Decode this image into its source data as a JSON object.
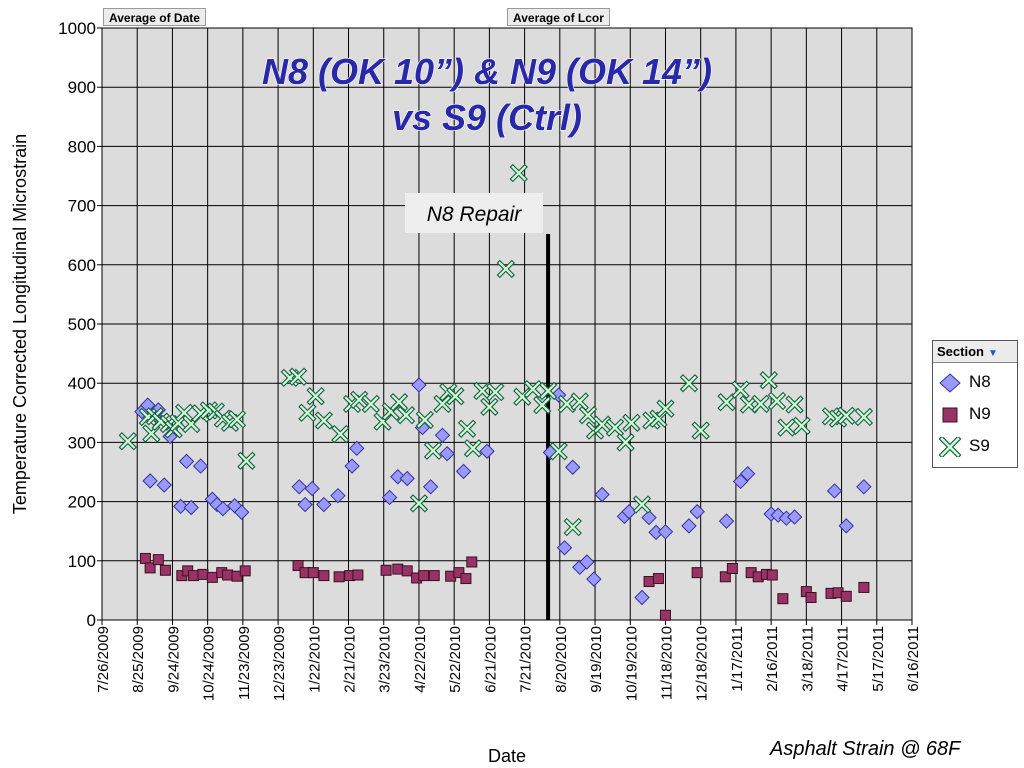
{
  "field_buttons": {
    "date": "Average of Date",
    "lcor": "Average of Lcor"
  },
  "legend": {
    "title": "Section",
    "items": [
      {
        "name": "N8",
        "color": "#9999ff",
        "marker": "diamond"
      },
      {
        "name": "N9",
        "color": "#993366",
        "marker": "square"
      },
      {
        "name": "S9",
        "color": "#ccffcc",
        "marker": "cross"
      }
    ]
  },
  "footnote": "Asphalt Strain @ 68F",
  "chart_data": {
    "type": "scatter",
    "title": "N8 (OK 10”) & N9 (OK 14”)",
    "subtitle": "vs S9 (Ctrl)",
    "xlabel": "Date",
    "ylabel": "Temperature Corrected Longitudinal Microstrain",
    "ylim": [
      0,
      1000
    ],
    "yticks": [
      0,
      100,
      200,
      300,
      400,
      500,
      600,
      700,
      800,
      900,
      1000
    ],
    "xlim": [
      "2009-07-26",
      "2011-06-16"
    ],
    "xticks": [
      "7/26/2009",
      "8/25/2009",
      "9/24/2009",
      "10/24/2009",
      "11/23/2009",
      "12/23/2009",
      "1/22/2010",
      "2/21/2010",
      "3/23/2010",
      "4/22/2010",
      "5/22/2010",
      "6/21/2010",
      "7/21/2010",
      "8/20/2010",
      "9/19/2010",
      "10/19/2010",
      "11/18/2010",
      "12/18/2010",
      "1/17/2011",
      "2/16/2011",
      "3/18/2011",
      "4/17/2011",
      "5/17/2011",
      "6/16/2011"
    ],
    "grid": true,
    "legend_position": "right",
    "annotation": {
      "text": "N8 Repair",
      "date": "2010-08-10",
      "line_top": 652
    },
    "series": [
      {
        "name": "N8",
        "points": [
          [
            "2009-08-29",
            352
          ],
          [
            "2009-09-03",
            363
          ],
          [
            "2009-09-05",
            235
          ],
          [
            "2009-09-09",
            345
          ],
          [
            "2009-09-12",
            355
          ],
          [
            "2009-09-17",
            228
          ],
          [
            "2009-09-22",
            310
          ],
          [
            "2009-10-01",
            192
          ],
          [
            "2009-10-06",
            268
          ],
          [
            "2009-10-10",
            190
          ],
          [
            "2009-10-18",
            260
          ],
          [
            "2009-10-28",
            204
          ],
          [
            "2009-11-01",
            195
          ],
          [
            "2009-11-06",
            188
          ],
          [
            "2009-11-16",
            193
          ],
          [
            "2009-11-22",
            182
          ],
          [
            "2010-01-10",
            225
          ],
          [
            "2010-01-15",
            195
          ],
          [
            "2010-01-21",
            222
          ],
          [
            "2010-01-31",
            195
          ],
          [
            "2010-02-12",
            210
          ],
          [
            "2010-02-24",
            260
          ],
          [
            "2010-02-28",
            290
          ],
          [
            "2010-03-28",
            207
          ],
          [
            "2010-04-04",
            242
          ],
          [
            "2010-04-12",
            239
          ],
          [
            "2010-04-22",
            397
          ],
          [
            "2010-04-25",
            325
          ],
          [
            "2010-05-02",
            225
          ],
          [
            "2010-05-12",
            312
          ],
          [
            "2010-05-16",
            281
          ],
          [
            "2010-05-30",
            251
          ],
          [
            "2010-06-19",
            285
          ],
          [
            "2010-08-12",
            283
          ],
          [
            "2010-08-19",
            380
          ],
          [
            "2010-08-24",
            122
          ],
          [
            "2010-08-31",
            258
          ],
          [
            "2010-09-06",
            89
          ],
          [
            "2010-09-12",
            98
          ],
          [
            "2010-09-18",
            69
          ],
          [
            "2010-09-25",
            212
          ],
          [
            "2010-10-14",
            175
          ],
          [
            "2010-10-18",
            183
          ],
          [
            "2010-10-29",
            38
          ],
          [
            "2010-11-04",
            173
          ],
          [
            "2010-11-10",
            148
          ],
          [
            "2010-11-18",
            149
          ],
          [
            "2010-12-08",
            159
          ],
          [
            "2010-12-15",
            183
          ],
          [
            "2011-01-09",
            167
          ],
          [
            "2011-01-21",
            234
          ],
          [
            "2011-01-27",
            247
          ],
          [
            "2011-02-16",
            179
          ],
          [
            "2011-02-22",
            177
          ],
          [
            "2011-03-01",
            172
          ],
          [
            "2011-03-08",
            174
          ],
          [
            "2011-04-11",
            218
          ],
          [
            "2011-04-21",
            159
          ],
          [
            "2011-05-06",
            225
          ]
        ]
      },
      {
        "name": "N9",
        "points": [
          [
            "2009-09-01",
            104
          ],
          [
            "2009-09-05",
            88
          ],
          [
            "2009-09-12",
            102
          ],
          [
            "2009-09-18",
            84
          ],
          [
            "2009-10-02",
            75
          ],
          [
            "2009-10-07",
            83
          ],
          [
            "2009-10-12",
            75
          ],
          [
            "2009-10-20",
            77
          ],
          [
            "2009-10-28",
            72
          ],
          [
            "2009-11-05",
            80
          ],
          [
            "2009-11-10",
            76
          ],
          [
            "2009-11-18",
            74
          ],
          [
            "2009-11-25",
            83
          ],
          [
            "2010-01-09",
            92
          ],
          [
            "2010-01-15",
            80
          ],
          [
            "2010-01-22",
            80
          ],
          [
            "2010-01-31",
            75
          ],
          [
            "2010-02-13",
            73
          ],
          [
            "2010-02-22",
            75
          ],
          [
            "2010-03-01",
            76
          ],
          [
            "2010-03-25",
            84
          ],
          [
            "2010-04-04",
            86
          ],
          [
            "2010-04-12",
            83
          ],
          [
            "2010-04-20",
            71
          ],
          [
            "2010-04-26",
            75
          ],
          [
            "2010-05-05",
            75
          ],
          [
            "2010-05-19",
            74
          ],
          [
            "2010-05-26",
            80
          ],
          [
            "2010-06-01",
            70
          ],
          [
            "2010-06-06",
            98
          ],
          [
            "2010-11-04",
            65
          ],
          [
            "2010-11-12",
            70
          ],
          [
            "2010-11-18",
            8
          ],
          [
            "2010-12-15",
            80
          ],
          [
            "2011-01-08",
            73
          ],
          [
            "2011-01-14",
            87
          ],
          [
            "2011-01-30",
            80
          ],
          [
            "2011-02-05",
            73
          ],
          [
            "2011-02-12",
            77
          ],
          [
            "2011-02-17",
            76
          ],
          [
            "2011-02-26",
            36
          ],
          [
            "2011-03-18",
            48
          ],
          [
            "2011-03-22",
            38
          ],
          [
            "2011-04-08",
            45
          ],
          [
            "2011-04-14",
            46
          ],
          [
            "2011-04-21",
            40
          ],
          [
            "2011-05-06",
            55
          ]
        ]
      },
      {
        "name": "S9",
        "points": [
          [
            "2009-08-17",
            302
          ],
          [
            "2009-09-03",
            343
          ],
          [
            "2009-09-06",
            315
          ],
          [
            "2009-09-09",
            344
          ],
          [
            "2009-09-14",
            335
          ],
          [
            "2009-09-21",
            331
          ],
          [
            "2009-09-25",
            322
          ],
          [
            "2009-09-29",
            333
          ],
          [
            "2009-10-04",
            350
          ],
          [
            "2009-10-10",
            331
          ],
          [
            "2009-10-18",
            349
          ],
          [
            "2009-10-25",
            354
          ],
          [
            "2009-10-31",
            352
          ],
          [
            "2009-11-06",
            340
          ],
          [
            "2009-11-12",
            333
          ],
          [
            "2009-11-18",
            339
          ],
          [
            "2009-11-26",
            269
          ],
          [
            "2010-01-02",
            409
          ],
          [
            "2010-01-09",
            411
          ],
          [
            "2010-01-17",
            350
          ],
          [
            "2010-01-24",
            378
          ],
          [
            "2010-01-31",
            337
          ],
          [
            "2010-02-14",
            314
          ],
          [
            "2010-02-24",
            365
          ],
          [
            "2010-03-02",
            372
          ],
          [
            "2010-03-12",
            365
          ],
          [
            "2010-03-22",
            335
          ],
          [
            "2010-03-29",
            352
          ],
          [
            "2010-04-05",
            368
          ],
          [
            "2010-04-11",
            346
          ],
          [
            "2010-04-22",
            197
          ],
          [
            "2010-04-27",
            338
          ],
          [
            "2010-05-04",
            286
          ],
          [
            "2010-05-12",
            365
          ],
          [
            "2010-05-17",
            385
          ],
          [
            "2010-05-23",
            378
          ],
          [
            "2010-06-02",
            323
          ],
          [
            "2010-06-07",
            290
          ],
          [
            "2010-06-15",
            387
          ],
          [
            "2010-06-21",
            360
          ],
          [
            "2010-06-26",
            385
          ],
          [
            "2010-07-05",
            593
          ],
          [
            "2010-07-16",
            755
          ],
          [
            "2010-07-19",
            377
          ],
          [
            "2010-07-28",
            390
          ],
          [
            "2010-08-05",
            363
          ],
          [
            "2010-08-10",
            387
          ],
          [
            "2010-08-19",
            285
          ],
          [
            "2010-08-26",
            365
          ],
          [
            "2010-08-31",
            157
          ],
          [
            "2010-09-06",
            369
          ],
          [
            "2010-09-13",
            346
          ],
          [
            "2010-09-19",
            320
          ],
          [
            "2010-09-25",
            330
          ],
          [
            "2010-10-06",
            325
          ],
          [
            "2010-10-15",
            300
          ],
          [
            "2010-10-20",
            333
          ],
          [
            "2010-10-29",
            195
          ],
          [
            "2010-11-06",
            337
          ],
          [
            "2010-11-12",
            340
          ],
          [
            "2010-11-18",
            357
          ],
          [
            "2010-12-08",
            400
          ],
          [
            "2010-12-18",
            320
          ],
          [
            "2011-01-09",
            368
          ],
          [
            "2011-01-21",
            389
          ],
          [
            "2011-01-28",
            364
          ],
          [
            "2011-02-07",
            365
          ],
          [
            "2011-02-14",
            405
          ],
          [
            "2011-02-21",
            370
          ],
          [
            "2011-03-01",
            325
          ],
          [
            "2011-03-08",
            364
          ],
          [
            "2011-03-14",
            328
          ],
          [
            "2011-04-08",
            344
          ],
          [
            "2011-04-14",
            340
          ],
          [
            "2011-04-21",
            345
          ],
          [
            "2011-05-06",
            343
          ]
        ]
      }
    ]
  }
}
